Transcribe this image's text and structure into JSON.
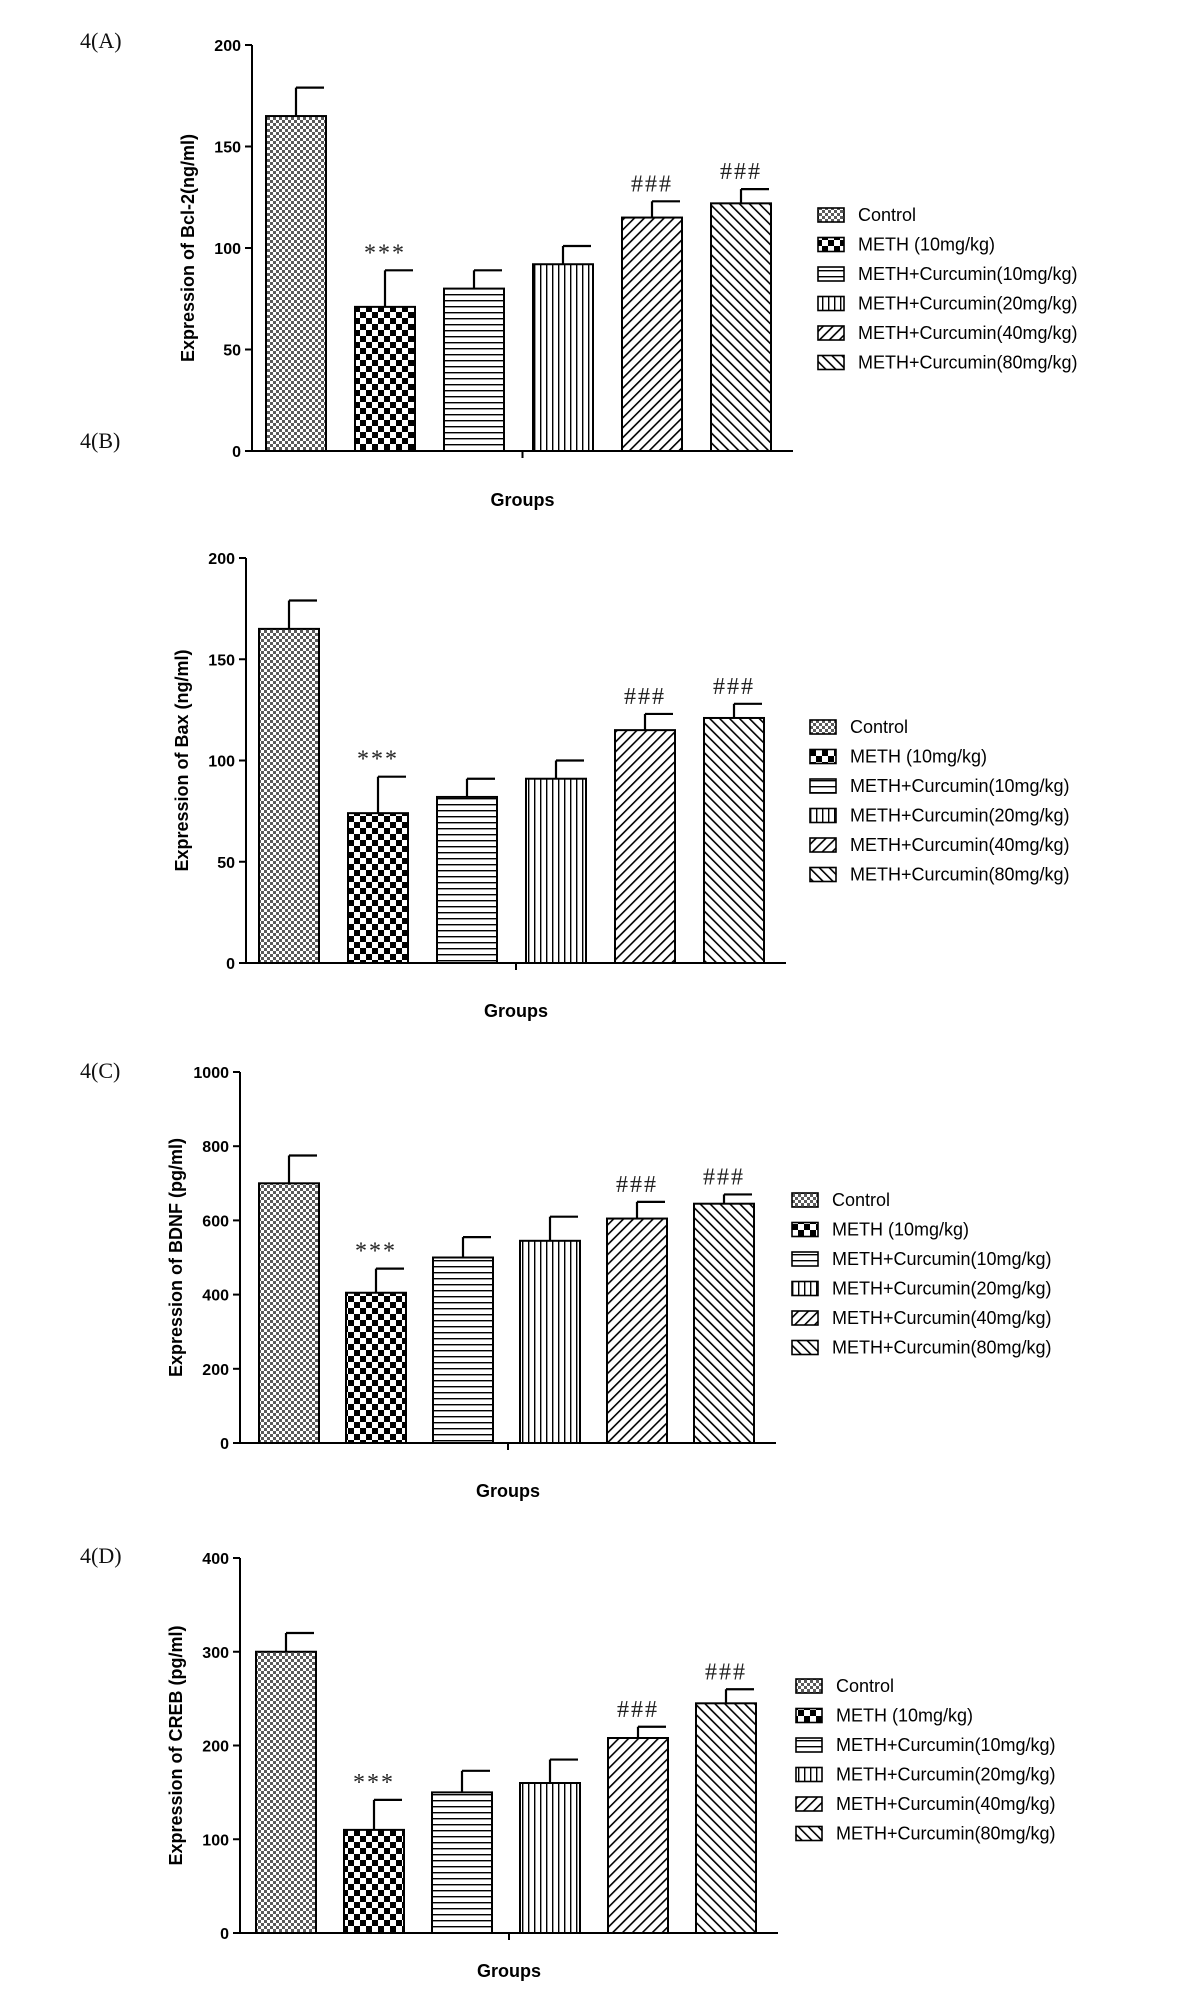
{
  "figure": {
    "panels": [
      "4(A)",
      "4(B)",
      "4(C)",
      "4(D)"
    ]
  },
  "chart_data": [
    {
      "type": "bar",
      "panel": "4(A)",
      "xlabel": "Groups",
      "ylabel": "Expression of Bcl-2(ng/ml)",
      "ylim": [
        0,
        200
      ],
      "yticks": [
        0,
        50,
        100,
        150,
        200
      ],
      "categories": [
        "Control",
        "METH (10mg/kg)",
        "METH+Curcumin(10mg/kg)",
        "METH+Curcumin(20mg/kg)",
        "METH+Curcumin(40mg/kg)",
        "METH+Curcumin(80mg/kg)"
      ],
      "values": [
        165,
        71,
        80,
        92,
        115,
        122
      ],
      "errors": [
        14,
        18,
        9,
        9,
        8,
        7
      ],
      "annotations": [
        "",
        "***",
        "",
        "",
        "###",
        "###"
      ],
      "legend": [
        "Control",
        "METH (10mg/kg)",
        "METH+Curcumin(10mg/kg)",
        "METH+Curcumin(20mg/kg)",
        "METH+Curcumin(40mg/kg)",
        "METH+Curcumin(80mg/kg)"
      ],
      "legend_position": "right",
      "grid": false
    },
    {
      "type": "bar",
      "panel": "4(B)",
      "xlabel": "Groups",
      "ylabel": "Expression of Bax (ng/ml)",
      "ylim": [
        0,
        200
      ],
      "yticks": [
        0,
        50,
        100,
        150,
        200
      ],
      "categories": [
        "Control",
        "METH (10mg/kg)",
        "METH+Curcumin(10mg/kg)",
        "METH+Curcumin(20mg/kg)",
        "METH+Curcumin(40mg/kg)",
        "METH+Curcumin(80mg/kg)"
      ],
      "values": [
        165,
        74,
        82,
        91,
        115,
        121
      ],
      "errors": [
        14,
        18,
        9,
        9,
        8,
        7
      ],
      "annotations": [
        "",
        "***",
        "",
        "",
        "###",
        "###"
      ],
      "legend": [
        "Control",
        "METH (10mg/kg)",
        "METH+Curcumin(10mg/kg)",
        "METH+Curcumin(20mg/kg)",
        "METH+Curcumin(40mg/kg)",
        "METH+Curcumin(80mg/kg)"
      ],
      "legend_position": "right",
      "grid": false
    },
    {
      "type": "bar",
      "panel": "4(C)",
      "xlabel": "Groups",
      "ylabel": "Expression of BDNF (pg/ml)",
      "ylim": [
        0,
        1000
      ],
      "yticks": [
        0,
        200,
        400,
        600,
        800,
        1000
      ],
      "categories": [
        "Control",
        "METH (10mg/kg)",
        "METH+Curcumin(10mg/kg)",
        "METH+Curcumin(20mg/kg)",
        "METH+Curcumin(40mg/kg)",
        "METH+Curcumin(80mg/kg)"
      ],
      "values": [
        700,
        405,
        500,
        545,
        605,
        645
      ],
      "errors": [
        75,
        65,
        55,
        65,
        45,
        25
      ],
      "annotations": [
        "",
        "***",
        "",
        "",
        "###",
        "###"
      ],
      "legend": [
        "Control",
        "METH (10mg/kg)",
        "METH+Curcumin(10mg/kg)",
        "METH+Curcumin(20mg/kg)",
        "METH+Curcumin(40mg/kg)",
        "METH+Curcumin(80mg/kg)"
      ],
      "legend_position": "right",
      "grid": false
    },
    {
      "type": "bar",
      "panel": "4(D)",
      "xlabel": "Groups",
      "ylabel": "Expression of CREB (pg/ml)",
      "ylim": [
        0,
        400
      ],
      "yticks": [
        0,
        100,
        200,
        300,
        400
      ],
      "categories": [
        "Control",
        "METH (10mg/kg)",
        "METH+Curcumin(10mg/kg)",
        "METH+Curcumin(20mg/kg)",
        "METH+Curcumin(40mg/kg)",
        "METH+Curcumin(80mg/kg)"
      ],
      "values": [
        300,
        110,
        150,
        160,
        208,
        245
      ],
      "errors": [
        20,
        32,
        23,
        25,
        12,
        15
      ],
      "annotations": [
        "",
        "***",
        "",
        "",
        "###",
        "###"
      ],
      "legend": [
        "Control",
        "METH (10mg/kg)",
        "METH+Curcumin(10mg/kg)",
        "METH+Curcumin(20mg/kg)",
        "METH+Curcumin(40mg/kg)",
        "METH+Curcumin(80mg/kg)"
      ],
      "legend_position": "right",
      "grid": false
    }
  ]
}
